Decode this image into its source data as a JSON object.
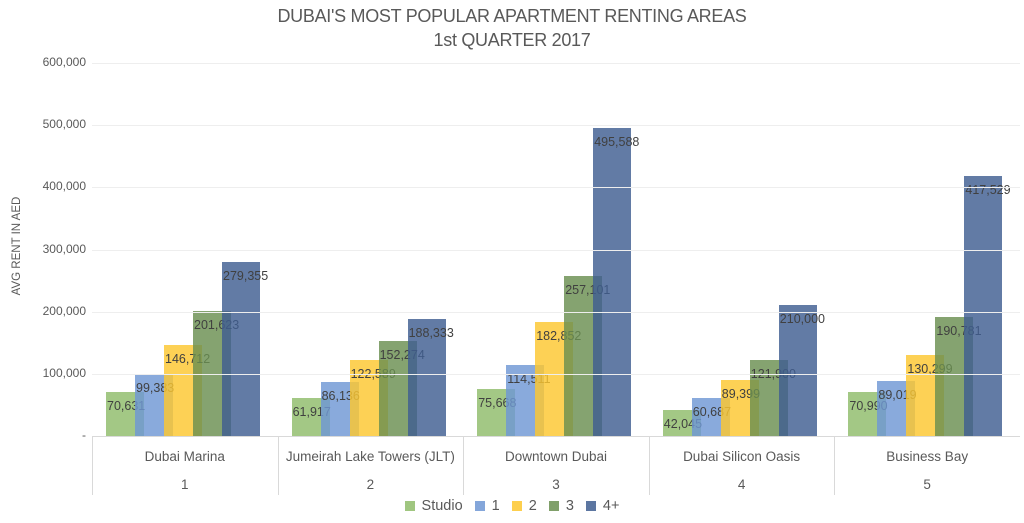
{
  "chart_data": {
    "type": "bar",
    "title": "DUBAI'S MOST POPULAR APARTMENT RENTING AREAS",
    "subtitle": "1st QUARTER  2017",
    "xlabel": "",
    "ylabel": "AVG RENT IN AED",
    "ylim": [
      0,
      600000
    ],
    "yticks": [
      "-",
      "100,000",
      "200,000",
      "300,000",
      "400,000",
      "500,000",
      "600,000"
    ],
    "grid": true,
    "legend_position": "bottom",
    "categories": [
      "Dubai Marina",
      "Jumeirah Lake Towers (JLT)",
      "Downtown Dubai",
      "Dubai Silicon Oasis",
      "Business Bay"
    ],
    "category_index": [
      "1",
      "2",
      "3",
      "4",
      "5"
    ],
    "series": [
      {
        "name": "Studio",
        "color": "#8fbc6a",
        "values": [
          70631,
          61917,
          75668,
          42045,
          70990
        ],
        "labels": [
          "70,631",
          "61,917",
          "75,668",
          "42,045",
          "70,990"
        ]
      },
      {
        "name": "1",
        "color": "#6f97d4",
        "values": [
          99383,
          86136,
          114511,
          60687,
          89019
        ],
        "labels": [
          "99,383",
          "86,136",
          "114,511",
          "60,687",
          "89,019"
        ]
      },
      {
        "name": "2",
        "color": "#fdc72f",
        "values": [
          146712,
          122589,
          182852,
          89399,
          130299
        ],
        "labels": [
          "146,712",
          "122,589",
          "182,852",
          "89,399",
          "130,299"
        ]
      },
      {
        "name": "3",
        "color": "#6a8f50",
        "values": [
          201623,
          152274,
          257101,
          121900,
          190781
        ],
        "labels": [
          "201,623",
          "152,274",
          "257,101",
          "121,900",
          "190,781"
        ]
      },
      {
        "name": "4+",
        "color": "#3f5e91",
        "values": [
          279355,
          188333,
          495588,
          210000,
          417529
        ],
        "labels": [
          "279,355",
          "188,333",
          "495,588",
          "210,000",
          "417,529"
        ]
      }
    ]
  }
}
